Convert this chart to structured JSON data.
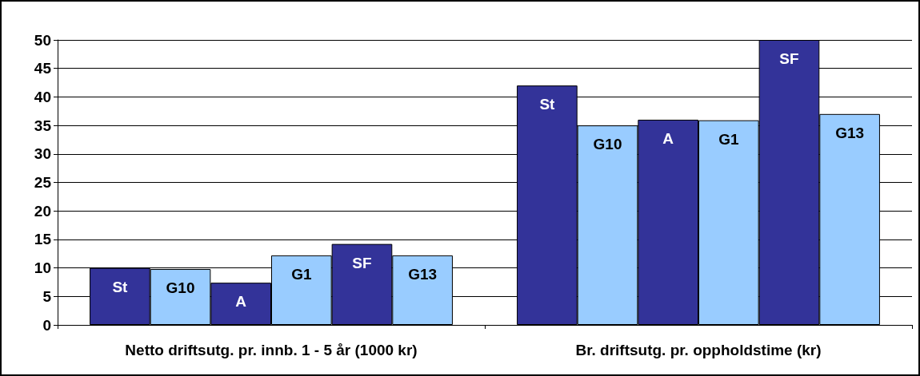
{
  "chart_data": {
    "type": "bar",
    "categories": [
      "Netto driftsutg. pr. innb. 1 - 5 år (1000 kr)",
      "Br. driftsutg. pr. oppholdstime (kr)"
    ],
    "series": [
      {
        "name": "St",
        "color": "#333399",
        "values": [
          10,
          42
        ]
      },
      {
        "name": "G10",
        "color": "#99ccff",
        "values": [
          9.8,
          35
        ]
      },
      {
        "name": "A",
        "color": "#333399",
        "values": [
          7.4,
          36
        ]
      },
      {
        "name": "G1",
        "color": "#99ccff",
        "values": [
          12.2,
          35.9
        ]
      },
      {
        "name": "SF",
        "color": "#333399",
        "values": [
          14.2,
          50
        ]
      },
      {
        "name": "G13",
        "color": "#99ccff",
        "values": [
          12.2,
          37
        ]
      }
    ],
    "ylim": [
      0,
      50
    ],
    "yticks": [
      0,
      5,
      10,
      15,
      20,
      25,
      30,
      35,
      40,
      45,
      50
    ],
    "grid": "y",
    "legend": false
  }
}
